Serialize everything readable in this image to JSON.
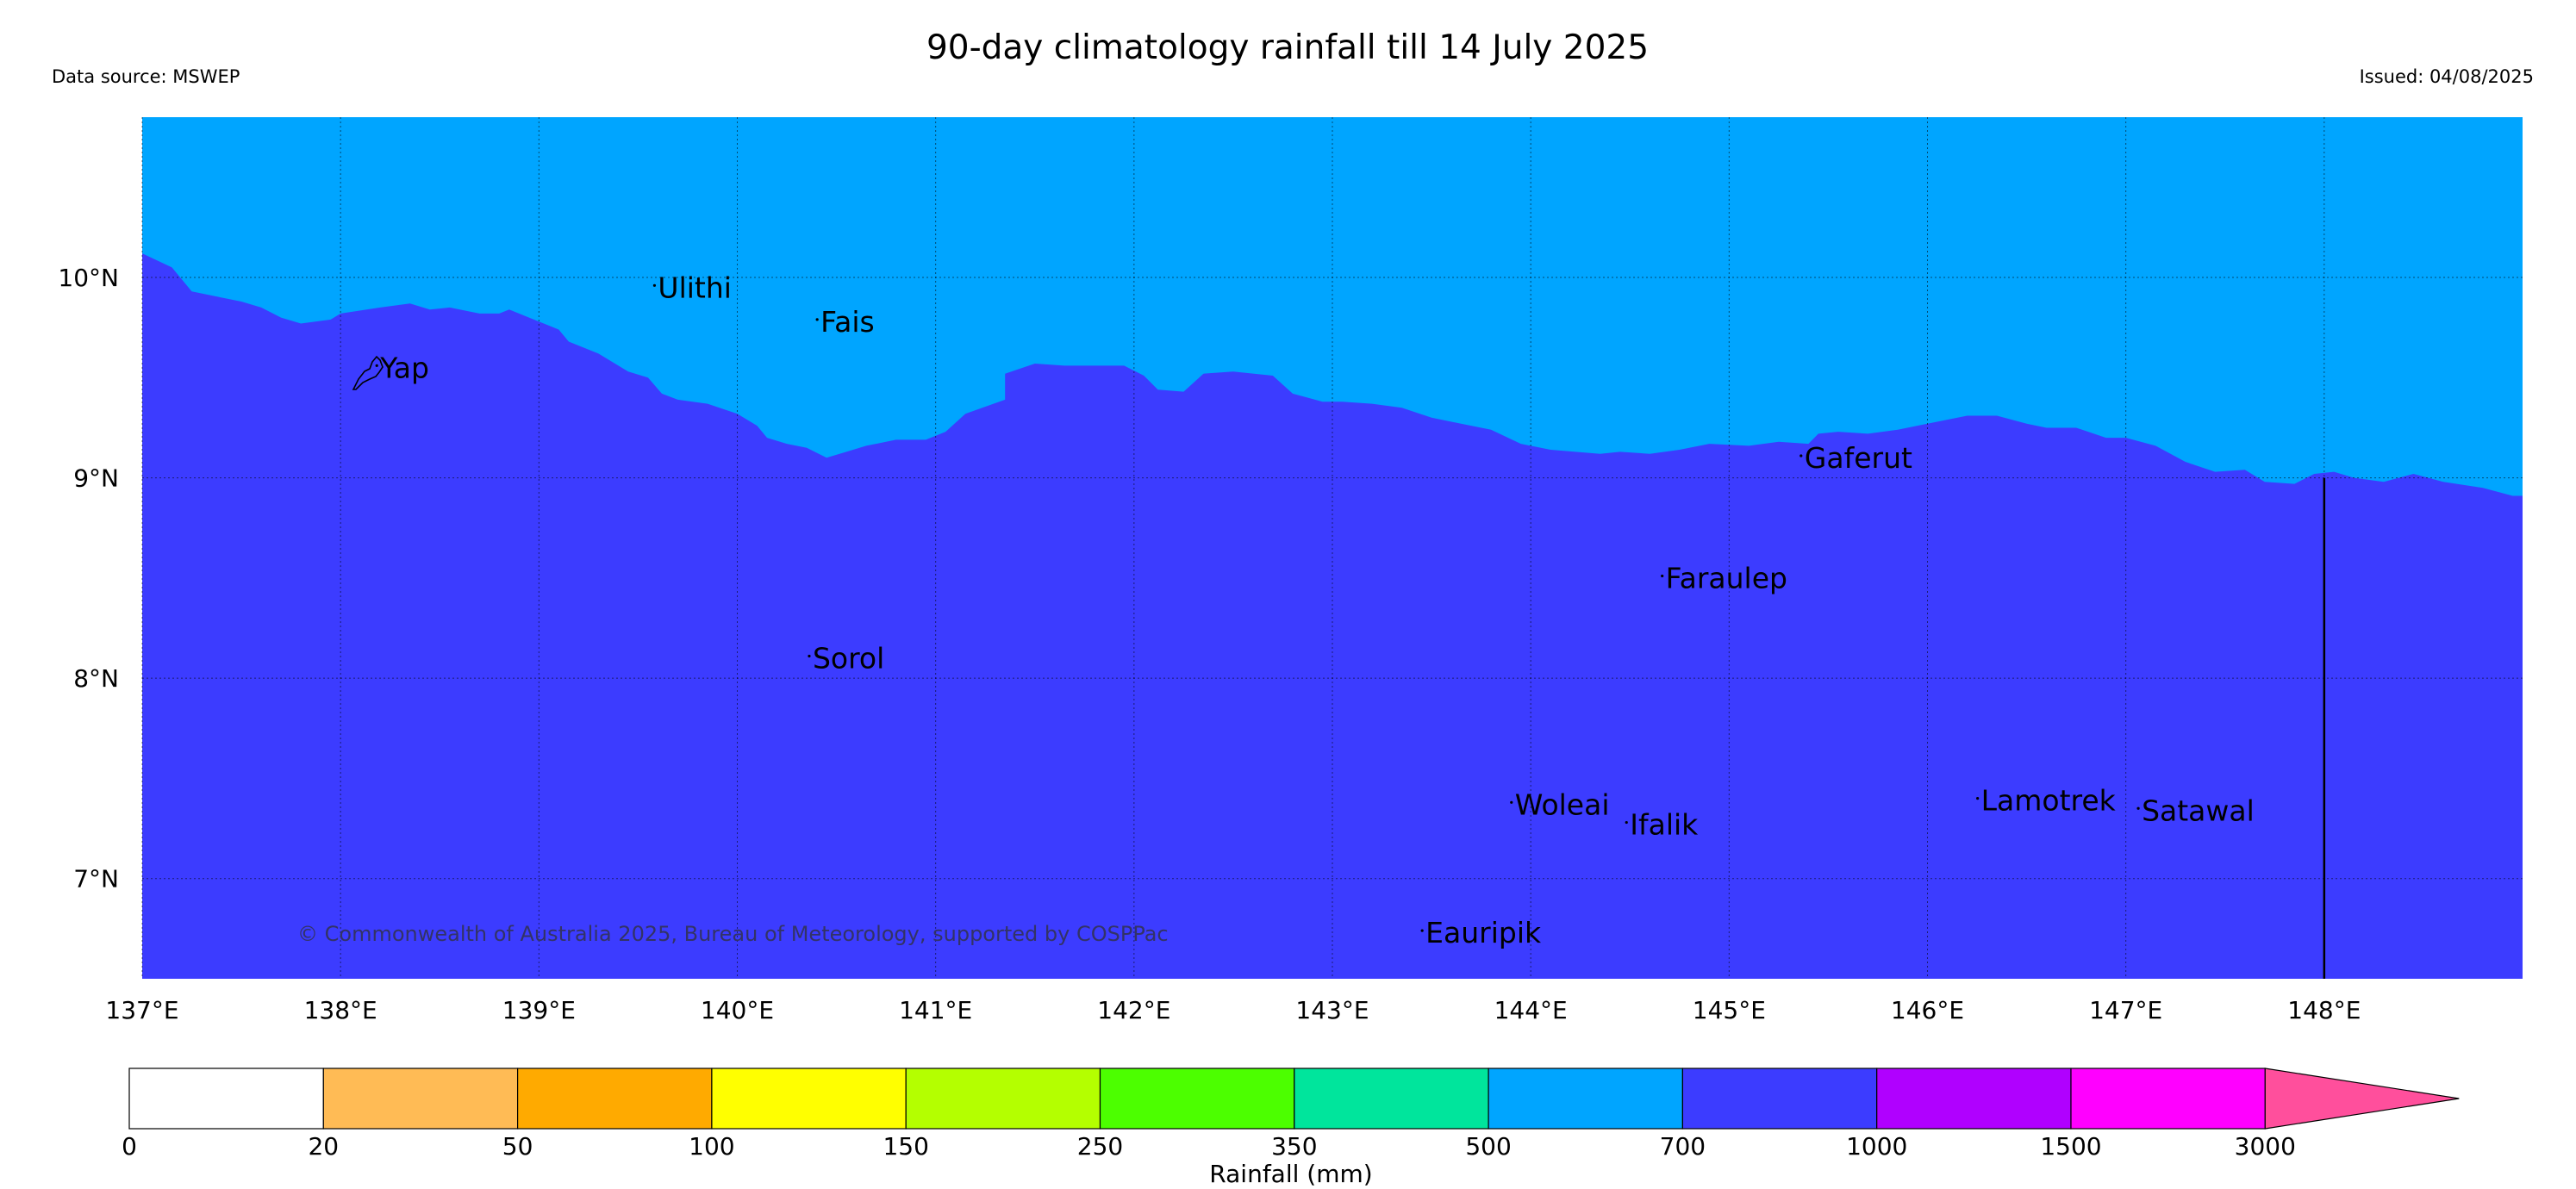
{
  "title": "90-day climatology rainfall till 14 July 2025",
  "data_source": "Data source: MSWEP",
  "issued": "Issued: 04/08/2025",
  "copyright": "© Commonwealth of Australia 2025, Bureau of Meteorology, supported by COSPPac",
  "colors": {
    "class_500_700": "#00a5ff",
    "class_700_1000": "#3c3cff"
  },
  "map": {
    "lon_range": [
      137,
      149
    ],
    "lat_range": [
      6.5,
      10.8
    ],
    "lon_ticks": [
      {
        "value": 137,
        "label": "137°E"
      },
      {
        "value": 138,
        "label": "138°E"
      },
      {
        "value": 139,
        "label": "139°E"
      },
      {
        "value": 140,
        "label": "140°E"
      },
      {
        "value": 141,
        "label": "141°E"
      },
      {
        "value": 142,
        "label": "142°E"
      },
      {
        "value": 143,
        "label": "143°E"
      },
      {
        "value": 144,
        "label": "144°E"
      },
      {
        "value": 145,
        "label": "145°E"
      },
      {
        "value": 146,
        "label": "146°E"
      },
      {
        "value": 147,
        "label": "147°E"
      },
      {
        "value": 148,
        "label": "148°E"
      }
    ],
    "lat_ticks": [
      {
        "value": 10,
        "label": "10°N"
      },
      {
        "value": 9,
        "label": "9°N"
      },
      {
        "value": 8,
        "label": "8°N"
      },
      {
        "value": 7,
        "label": "7°N"
      }
    ],
    "boundary_line": {
      "lon": 148.0,
      "lat_from": 9.0,
      "lat_to": 6.5
    },
    "class_boundary": [
      [
        137.0,
        10.12
      ],
      [
        137.15,
        10.05
      ],
      [
        137.25,
        9.93
      ],
      [
        137.5,
        9.88
      ],
      [
        137.6,
        9.85
      ],
      [
        137.7,
        9.8
      ],
      [
        137.8,
        9.77
      ],
      [
        137.95,
        9.79
      ],
      [
        138.0,
        9.82
      ],
      [
        138.2,
        9.85
      ],
      [
        138.35,
        9.87
      ],
      [
        138.45,
        9.84
      ],
      [
        138.55,
        9.85
      ],
      [
        138.7,
        9.82
      ],
      [
        138.8,
        9.82
      ],
      [
        138.85,
        9.84
      ],
      [
        139.0,
        9.78
      ],
      [
        139.1,
        9.74
      ],
      [
        139.15,
        9.68
      ],
      [
        139.3,
        9.62
      ],
      [
        139.45,
        9.53
      ],
      [
        139.55,
        9.5
      ],
      [
        139.62,
        9.42
      ],
      [
        139.7,
        9.39
      ],
      [
        139.85,
        9.37
      ],
      [
        140.0,
        9.32
      ],
      [
        140.1,
        9.26
      ],
      [
        140.15,
        9.2
      ],
      [
        140.25,
        9.17
      ],
      [
        140.35,
        9.15
      ],
      [
        140.45,
        9.1
      ],
      [
        140.55,
        9.13
      ],
      [
        140.65,
        9.16
      ],
      [
        140.8,
        9.19
      ],
      [
        140.95,
        9.19
      ],
      [
        141.05,
        9.23
      ],
      [
        141.15,
        9.32
      ],
      [
        141.35,
        9.39
      ],
      [
        141.35,
        9.52
      ],
      [
        141.5,
        9.57
      ],
      [
        141.65,
        9.56
      ],
      [
        141.8,
        9.56
      ],
      [
        141.95,
        9.56
      ],
      [
        142.05,
        9.51
      ],
      [
        142.12,
        9.44
      ],
      [
        142.25,
        9.43
      ],
      [
        142.35,
        9.52
      ],
      [
        142.5,
        9.53
      ],
      [
        142.7,
        9.51
      ],
      [
        142.8,
        9.42
      ],
      [
        142.95,
        9.38
      ],
      [
        143.05,
        9.38
      ],
      [
        143.2,
        9.37
      ],
      [
        143.35,
        9.35
      ],
      [
        143.5,
        9.3
      ],
      [
        143.6,
        9.28
      ],
      [
        143.8,
        9.24
      ],
      [
        143.95,
        9.17
      ],
      [
        144.1,
        9.14
      ],
      [
        144.35,
        9.12
      ],
      [
        144.45,
        9.13
      ],
      [
        144.6,
        9.12
      ],
      [
        144.75,
        9.14
      ],
      [
        144.9,
        9.17
      ],
      [
        145.1,
        9.16
      ],
      [
        145.25,
        9.18
      ],
      [
        145.4,
        9.17
      ],
      [
        145.45,
        9.22
      ],
      [
        145.55,
        9.23
      ],
      [
        145.7,
        9.22
      ],
      [
        145.85,
        9.24
      ],
      [
        146.0,
        9.27
      ],
      [
        146.2,
        9.31
      ],
      [
        146.35,
        9.31
      ],
      [
        146.5,
        9.27
      ],
      [
        146.6,
        9.25
      ],
      [
        146.75,
        9.25
      ],
      [
        146.9,
        9.2
      ],
      [
        147.0,
        9.2
      ],
      [
        147.15,
        9.16
      ],
      [
        147.3,
        9.08
      ],
      [
        147.45,
        9.03
      ],
      [
        147.6,
        9.04
      ],
      [
        147.7,
        8.98
      ],
      [
        147.85,
        8.97
      ],
      [
        147.95,
        9.02
      ],
      [
        148.05,
        9.03
      ],
      [
        148.15,
        9.0
      ],
      [
        148.3,
        8.98
      ],
      [
        148.45,
        9.02
      ],
      [
        148.6,
        8.98
      ],
      [
        148.8,
        8.95
      ],
      [
        148.95,
        8.91
      ],
      [
        149.0,
        8.91
      ]
    ],
    "places": [
      {
        "name": "Yap",
        "lon": 138.2,
        "lat": 9.5
      },
      {
        "name": "Ulithi",
        "lon": 139.6,
        "lat": 9.9
      },
      {
        "name": "Fais",
        "lon": 140.42,
        "lat": 9.73
      },
      {
        "name": "Gaferut",
        "lon": 145.38,
        "lat": 9.05
      },
      {
        "name": "Faraulep",
        "lon": 144.68,
        "lat": 8.45
      },
      {
        "name": "Sorol",
        "lon": 140.38,
        "lat": 8.05
      },
      {
        "name": "Woleai",
        "lon": 143.92,
        "lat": 7.32
      },
      {
        "name": "Ifalik",
        "lon": 144.5,
        "lat": 7.22
      },
      {
        "name": "Lamotrek",
        "lon": 146.27,
        "lat": 7.34
      },
      {
        "name": "Satawal",
        "lon": 147.08,
        "lat": 7.29
      },
      {
        "name": "Eauripik",
        "lon": 143.47,
        "lat": 6.68
      }
    ]
  },
  "colorbar": {
    "label": "Rainfall (mm)",
    "bins": [
      {
        "lower": "0",
        "color": "#ffffff"
      },
      {
        "lower": "20",
        "color": "#ffbb55"
      },
      {
        "lower": "50",
        "color": "#ffaa00"
      },
      {
        "lower": "100",
        "color": "#ffff00"
      },
      {
        "lower": "150",
        "color": "#b4ff00"
      },
      {
        "lower": "250",
        "color": "#4cff00"
      },
      {
        "lower": "350",
        "color": "#00e59c"
      },
      {
        "lower": "500",
        "color": "#00a5ff"
      },
      {
        "lower": "700",
        "color": "#3c3cff"
      },
      {
        "lower": "1000",
        "color": "#b000ff"
      },
      {
        "lower": "1500",
        "color": "#ff00ff"
      }
    ],
    "last_label": "3000",
    "extension_color": "#ff4f9c"
  }
}
